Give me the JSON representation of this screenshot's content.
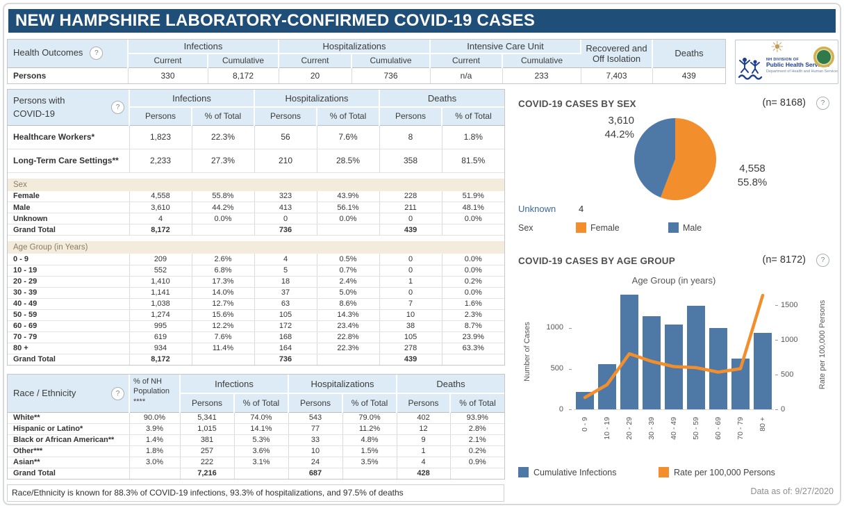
{
  "meta": {
    "title": "NEW HAMPSHIRE LABORATORY-CONFIRMED COVID-19 CASES",
    "footnote": "Race/Ethnicity is known for 88.3% of COVID-19 infections, 93.3% of hospitalizations, and 97.5% of deaths",
    "data_as_of_label": "Data as of:",
    "data_as_of_value": "9/27/2020",
    "help_glyph": "?"
  },
  "colors": {
    "title_bar": "#1f4e79",
    "header_fill": "#dcebf5",
    "band_fill": "#f3ecdd",
    "bar_blue": "#4e79a7",
    "orange": "#f28e2b"
  },
  "logo": {
    "line1": "NH DIVISION OF",
    "line2": "Public Health Services",
    "line3": "Department of Health and Human Services"
  },
  "health": {
    "title": "Health Outcomes",
    "groups": [
      "Infections",
      "Hospitalizations",
      "Intensive Care Unit"
    ],
    "sub": [
      "Current",
      "Cumulative"
    ],
    "recovered": "Recovered and Off Isolation",
    "deaths": "Deaths",
    "row_label": "Persons",
    "values": [
      "330",
      "8,172",
      "20",
      "736",
      "n/a",
      "233",
      "7,403",
      "439"
    ]
  },
  "persons": {
    "title_line1": "Persons with",
    "title_line2": "COVID-19",
    "groups": [
      "Infections",
      "Hospitalizations",
      "Deaths"
    ],
    "sub": [
      "Persons",
      "% of Total"
    ],
    "rows": [
      {
        "label": "Healthcare Workers*",
        "v": [
          "1,823",
          "22.3%",
          "56",
          "7.6%",
          "8",
          "1.8%"
        ]
      },
      {
        "label": "Long-Term Care Settings**",
        "v": [
          "2,233",
          "27.3%",
          "210",
          "28.5%",
          "358",
          "81.5%"
        ]
      }
    ],
    "sex": {
      "band": "Sex",
      "rows": [
        {
          "label": "Female",
          "v": [
            "4,558",
            "55.8%",
            "323",
            "43.9%",
            "228",
            "51.9%"
          ]
        },
        {
          "label": "Male",
          "v": [
            "3,610",
            "44.2%",
            "413",
            "56.1%",
            "211",
            "48.1%"
          ]
        },
        {
          "label": "Unknown",
          "v": [
            "4",
            "0.0%",
            "0",
            "0.0%",
            "0",
            "0.0%"
          ]
        },
        {
          "label": "Grand Total",
          "v": [
            "8,172",
            "",
            "736",
            "",
            "439",
            ""
          ]
        }
      ]
    },
    "age": {
      "band": "Age Group (in Years)",
      "rows": [
        {
          "label": "0 - 9",
          "v": [
            "209",
            "2.6%",
            "4",
            "0.5%",
            "0",
            "0.0%"
          ]
        },
        {
          "label": "10 - 19",
          "v": [
            "552",
            "6.8%",
            "5",
            "0.7%",
            "0",
            "0.0%"
          ]
        },
        {
          "label": "20 - 29",
          "v": [
            "1,410",
            "17.3%",
            "18",
            "2.4%",
            "1",
            "0.2%"
          ]
        },
        {
          "label": "30 - 39",
          "v": [
            "1,141",
            "14.0%",
            "37",
            "5.0%",
            "0",
            "0.0%"
          ]
        },
        {
          "label": "40 - 49",
          "v": [
            "1,038",
            "12.7%",
            "63",
            "8.6%",
            "7",
            "1.6%"
          ]
        },
        {
          "label": "50 - 59",
          "v": [
            "1,274",
            "15.6%",
            "105",
            "14.3%",
            "10",
            "2.3%"
          ]
        },
        {
          "label": "60 - 69",
          "v": [
            "995",
            "12.2%",
            "172",
            "23.4%",
            "38",
            "8.7%"
          ]
        },
        {
          "label": "70 - 79",
          "v": [
            "619",
            "7.6%",
            "168",
            "22.8%",
            "105",
            "23.9%"
          ]
        },
        {
          "label": "80 +",
          "v": [
            "934",
            "11.4%",
            "164",
            "22.3%",
            "278",
            "63.3%"
          ]
        },
        {
          "label": "Grand Total",
          "v": [
            "8,172",
            "",
            "736",
            "",
            "439",
            ""
          ]
        }
      ]
    }
  },
  "race": {
    "title": "Race / Ethnicity",
    "pop_header": "% of NH Population ****",
    "groups": [
      "Infections",
      "Hospitalizations",
      "Deaths"
    ],
    "sub": [
      "Persons",
      "% of Total"
    ],
    "rows": [
      {
        "label": "White**",
        "v": [
          "90.0%",
          "5,341",
          "74.0%",
          "543",
          "79.0%",
          "402",
          "93.9%"
        ]
      },
      {
        "label": "Hispanic or Latino*",
        "v": [
          "3.9%",
          "1,015",
          "14.1%",
          "77",
          "11.2%",
          "12",
          "2.8%"
        ]
      },
      {
        "label": "Black or African American**",
        "v": [
          "1.4%",
          "381",
          "5.3%",
          "33",
          "4.8%",
          "9",
          "2.1%"
        ]
      },
      {
        "label": "Other***",
        "v": [
          "1.8%",
          "257",
          "3.6%",
          "10",
          "1.5%",
          "1",
          "0.2%"
        ]
      },
      {
        "label": "Asian**",
        "v": [
          "3.0%",
          "222",
          "3.1%",
          "24",
          "3.5%",
          "4",
          "0.9%"
        ]
      },
      {
        "label": "Grand Total",
        "v": [
          "",
          "7,216",
          "",
          "687",
          "",
          "428",
          ""
        ]
      }
    ]
  },
  "chart_data": [
    {
      "type": "pie",
      "title": "COVID-19 CASES BY SEX",
      "n_label": "(n= 8168)",
      "legend_title": "Sex",
      "slices": [
        {
          "label": "Female",
          "value": 4558,
          "value_text": "4,558",
          "pct_text": "55.8%",
          "color": "#f28e2b"
        },
        {
          "label": "Male",
          "value": 3610,
          "value_text": "3,610",
          "pct_text": "44.2%",
          "color": "#4e79a7"
        }
      ],
      "unknown": {
        "label": "Unknown",
        "value_text": "4"
      }
    },
    {
      "type": "bar+line",
      "title": "COVID-19 CASES BY AGE GROUP",
      "n_label": "(n= 8172)",
      "axis_title": "Age Group (in years)",
      "categories": [
        "0 - 9",
        "10 - 19",
        "20 - 29",
        "30 - 39",
        "40 - 49",
        "50 - 59",
        "60 - 69",
        "70 - 79",
        "80 +"
      ],
      "bars": {
        "name": "Cumulative Infections",
        "color": "#4e79a7",
        "values": [
          209,
          552,
          1410,
          1141,
          1038,
          1274,
          995,
          619,
          934
        ]
      },
      "line": {
        "name": "Rate per 100,000 Persons",
        "color": "#f28e2b",
        "values": [
          170,
          355,
          800,
          690,
          615,
          600,
          535,
          585,
          1640
        ]
      },
      "left_axis": {
        "label": "Number of Cases",
        "ticks": [
          0,
          500,
          1000
        ],
        "max": 1450
      },
      "right_axis": {
        "label": "Rate per 100,000 Persons",
        "ticks": [
          0,
          500,
          1000,
          1500
        ],
        "max": 1700
      }
    }
  ]
}
